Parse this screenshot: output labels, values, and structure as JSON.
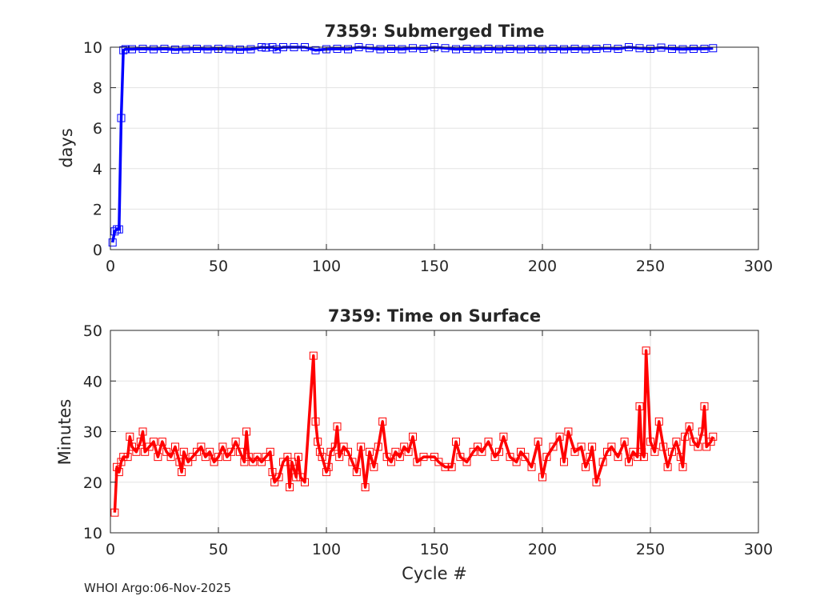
{
  "chart_data": [
    {
      "type": "line",
      "title": "7359: Submerged Time",
      "ylabel": "days",
      "xlabel": "",
      "xlim": [
        0,
        300
      ],
      "ylim": [
        0,
        10
      ],
      "xticks": [
        0,
        50,
        100,
        150,
        200,
        250,
        300
      ],
      "yticks": [
        0,
        2,
        4,
        6,
        8,
        10
      ],
      "grid": true,
      "marker": "square",
      "color": "#0000ff",
      "series": [
        {
          "name": "submerged_time_days",
          "x": [
            1,
            2,
            3,
            4,
            5,
            6,
            7,
            10,
            15,
            20,
            25,
            30,
            35,
            40,
            45,
            50,
            55,
            60,
            65,
            70,
            72,
            75,
            77,
            80,
            85,
            90,
            95,
            100,
            105,
            110,
            115,
            120,
            125,
            130,
            135,
            140,
            145,
            150,
            155,
            160,
            165,
            170,
            175,
            180,
            185,
            190,
            195,
            200,
            205,
            210,
            215,
            220,
            225,
            230,
            235,
            240,
            245,
            250,
            255,
            260,
            265,
            270,
            275,
            279
          ],
          "y": [
            0.35,
            0.9,
            1.0,
            1.0,
            6.5,
            9.85,
            9.9,
            9.9,
            9.92,
            9.9,
            9.92,
            9.88,
            9.9,
            9.92,
            9.9,
            9.92,
            9.9,
            9.88,
            9.9,
            10.0,
            9.98,
            10.0,
            9.9,
            10.0,
            10.0,
            10.0,
            9.85,
            9.9,
            9.92,
            9.9,
            10.0,
            9.95,
            9.9,
            9.92,
            9.9,
            9.95,
            9.92,
            10.0,
            9.95,
            9.9,
            9.92,
            9.9,
            9.92,
            9.9,
            9.92,
            9.9,
            9.92,
            9.9,
            9.92,
            9.9,
            9.92,
            9.9,
            9.92,
            9.95,
            9.92,
            10.0,
            9.95,
            9.92,
            9.98,
            9.92,
            9.9,
            9.92,
            9.92,
            9.95
          ]
        }
      ]
    },
    {
      "type": "line",
      "title": "7359: Time on Surface",
      "ylabel": "Minutes",
      "xlabel": "Cycle #",
      "xlim": [
        0,
        300
      ],
      "ylim": [
        10,
        50
      ],
      "xticks": [
        0,
        50,
        100,
        150,
        200,
        250,
        300
      ],
      "yticks": [
        10,
        20,
        30,
        40,
        50
      ],
      "grid": true,
      "marker": "square",
      "color": "#ff0000",
      "series": [
        {
          "name": "surface_time_minutes",
          "x": [
            2,
            3,
            4,
            5,
            6,
            8,
            9,
            10,
            12,
            14,
            15,
            16,
            18,
            20,
            22,
            24,
            26,
            28,
            30,
            32,
            33,
            34,
            36,
            38,
            40,
            42,
            44,
            46,
            48,
            50,
            52,
            54,
            56,
            58,
            60,
            62,
            63,
            64,
            66,
            68,
            70,
            72,
            74,
            75,
            76,
            78,
            80,
            82,
            83,
            84,
            86,
            87,
            88,
            90,
            94,
            95,
            96,
            97,
            98,
            100,
            101,
            102,
            104,
            105,
            106,
            108,
            110,
            112,
            114,
            116,
            118,
            120,
            122,
            124,
            126,
            128,
            130,
            132,
            134,
            136,
            138,
            140,
            142,
            145,
            150,
            152,
            155,
            158,
            160,
            162,
            165,
            168,
            170,
            172,
            175,
            178,
            180,
            182,
            185,
            188,
            190,
            192,
            195,
            198,
            200,
            202,
            205,
            208,
            210,
            212,
            215,
            218,
            220,
            222,
            223,
            225,
            228,
            230,
            232,
            235,
            238,
            240,
            242,
            244,
            245,
            246,
            247,
            248,
            250,
            252,
            254,
            256,
            258,
            260,
            262,
            264,
            265,
            266,
            268,
            270,
            272,
            274,
            275,
            276,
            278,
            279
          ],
          "y": [
            14,
            23,
            22,
            24,
            25,
            25,
            29,
            27,
            26,
            28,
            30,
            26,
            27,
            28,
            25,
            28,
            26,
            25,
            27,
            24,
            22,
            26,
            24,
            25,
            26,
            27,
            25,
            26,
            24,
            25,
            27,
            25,
            26,
            28,
            26,
            24,
            30,
            25,
            24,
            25,
            24,
            25,
            26,
            22,
            20,
            21,
            24,
            25,
            19,
            24,
            21,
            25,
            21,
            20,
            45,
            32,
            28,
            26,
            25,
            22,
            23,
            26,
            27,
            31,
            25,
            27,
            26,
            24,
            22,
            27,
            19,
            26,
            23,
            27,
            32,
            25,
            24,
            26,
            25,
            27,
            26,
            29,
            24,
            25,
            25,
            24,
            23,
            23,
            28,
            25,
            24,
            26,
            27,
            26,
            28,
            25,
            26,
            29,
            25,
            24,
            26,
            25,
            23,
            28,
            21,
            25,
            27,
            29,
            24,
            30,
            26,
            27,
            23,
            25,
            27,
            20,
            24,
            26,
            27,
            25,
            28,
            24,
            26,
            25,
            35,
            26,
            25,
            46,
            28,
            26,
            32,
            27,
            23,
            26,
            28,
            25,
            23,
            29,
            31,
            28,
            27,
            30,
            35,
            27,
            28,
            29
          ]
        }
      ]
    }
  ],
  "footer": "WHOI Argo:06-Nov-2025"
}
